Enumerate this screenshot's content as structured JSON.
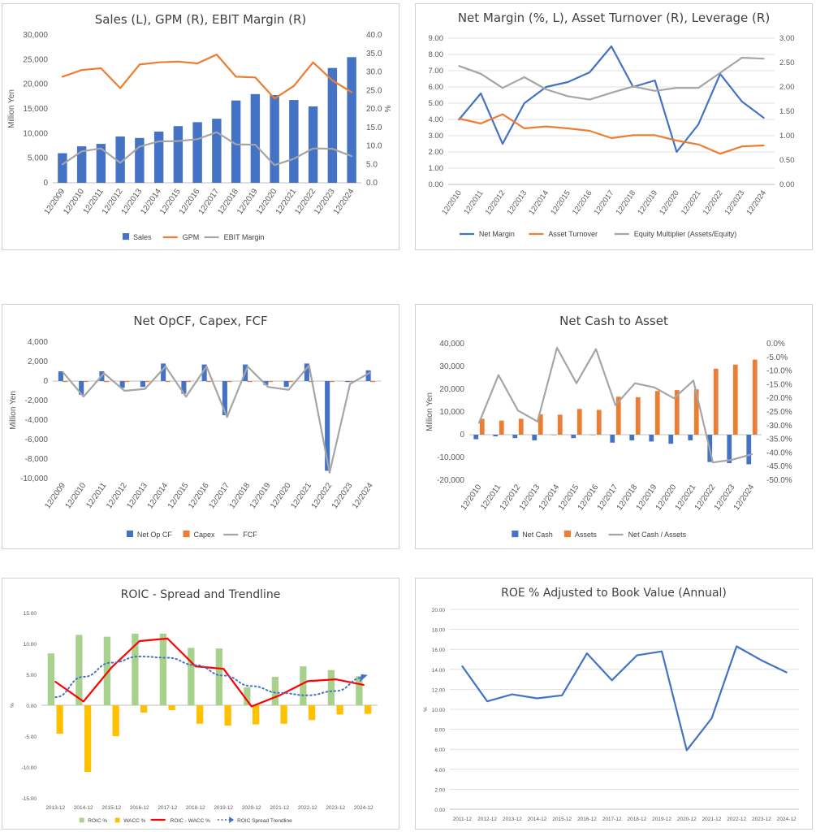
{
  "chart_data": [
    {
      "type": "bar",
      "title": "Sales (L), GPM (R), EBIT Margin (R)",
      "ylabel": "Million Yen",
      "y2label": "%",
      "categories": [
        "12/2009",
        "12/2010",
        "12/2011",
        "12/2012",
        "12/2013",
        "12/2014",
        "12/2015",
        "12/2016",
        "12/2017",
        "12/2018",
        "12/2019",
        "12/2020",
        "12/2021",
        "12/2022",
        "12/2023",
        "12/2024"
      ],
      "ylim": [
        0,
        30000
      ],
      "y2lim": [
        0,
        40
      ],
      "yticks": [
        "0",
        "5,000",
        "10,000",
        "15,000",
        "20,000",
        "25,000",
        "30,000"
      ],
      "y2ticks": [
        "0.0",
        "5.0",
        "10.0",
        "15.0",
        "20.0",
        "25.0",
        "30.0",
        "35.0",
        "40.0"
      ],
      "series": [
        {
          "name": "Sales",
          "kind": "bar",
          "axis": "left",
          "color": "#4472C4",
          "values": [
            6000,
            7400,
            7900,
            9400,
            9100,
            10400,
            11500,
            12300,
            13000,
            16700,
            18000,
            17800,
            16800,
            15500,
            23300,
            25500
          ]
        },
        {
          "name": "GPM",
          "kind": "line",
          "axis": "right",
          "color": "#ED7D31",
          "values": [
            28.7,
            30.5,
            31.0,
            25.6,
            32.0,
            32.6,
            32.8,
            32.3,
            34.7,
            28.7,
            28.5,
            22.8,
            26.2,
            32.6,
            27.7,
            24.5
          ]
        },
        {
          "name": "EBIT Margin",
          "kind": "line",
          "axis": "right",
          "color": "#A5A5A5",
          "values": [
            5.0,
            8.5,
            9.3,
            5.4,
            9.8,
            11.2,
            11.3,
            11.8,
            13.7,
            10.4,
            10.3,
            4.8,
            6.5,
            9.3,
            9.2,
            7.2
          ]
        }
      ],
      "legend": "bottom"
    },
    {
      "type": "line",
      "title": "Net Margin (%, L), Asset Turnover (R), Leverage (R)",
      "categories": [
        "12/2010",
        "12/2011",
        "12/2012",
        "12/2013",
        "12/2014",
        "12/2015",
        "12/2016",
        "12/2017",
        "12/2018",
        "12/2019",
        "12/2020",
        "12/2021",
        "12/2022",
        "12/2023",
        "12/2024"
      ],
      "ylim": [
        0,
        9
      ],
      "y2lim": [
        0,
        3
      ],
      "yticks": [
        "0.00",
        "1.00",
        "2.00",
        "3.00",
        "4.00",
        "5.00",
        "6.00",
        "7.00",
        "8.00",
        "9.00"
      ],
      "y2ticks": [
        "0.00",
        "0.50",
        "1.00",
        "1.50",
        "2.00",
        "2.50",
        "3.00"
      ],
      "series": [
        {
          "name": "Net Margin",
          "axis": "left",
          "color": "#4472C4",
          "values": [
            4.0,
            5.6,
            2.5,
            5.0,
            6.0,
            6.3,
            6.9,
            8.5,
            6.0,
            6.4,
            2.0,
            3.7,
            6.8,
            5.1,
            4.1
          ]
        },
        {
          "name": "Asset Turnover",
          "axis": "right",
          "color": "#ED7D31",
          "values": [
            1.35,
            1.25,
            1.44,
            1.15,
            1.19,
            1.15,
            1.1,
            0.95,
            1.01,
            1.01,
            0.9,
            0.82,
            0.63,
            0.78,
            0.8
          ]
        },
        {
          "name": "Equity Multiplier (Assets/Equity)",
          "axis": "right",
          "color": "#A5A5A5",
          "values": [
            2.43,
            2.27,
            1.98,
            2.2,
            1.95,
            1.81,
            1.74,
            1.88,
            2.01,
            1.92,
            1.98,
            1.98,
            2.29,
            2.6,
            2.58
          ]
        }
      ],
      "legend": "bottom"
    },
    {
      "type": "bar",
      "title": "Net OpCF, Capex, FCF",
      "ylabel": "Million Yen",
      "categories": [
        "12/2009",
        "12/2010",
        "12/2011",
        "12/2012",
        "12/2013",
        "12/2014",
        "12/2015",
        "12/2016",
        "12/2017",
        "12/2018",
        "12/2019",
        "12/2020",
        "12/2021",
        "12/2022",
        "12/2023",
        "12/2024"
      ],
      "ylim": [
        -10000,
        4000
      ],
      "yticks": [
        "-10,000",
        "-8,000",
        "-6,000",
        "-4,000",
        "-2,000",
        "0",
        "2,000",
        "4,000"
      ],
      "negative_tick_color": "#FF0000",
      "series": [
        {
          "name": "Net Op CF",
          "kind": "bar",
          "color": "#4472C4",
          "values": [
            1000,
            -1400,
            1000,
            -700,
            -600,
            1800,
            -1300,
            1700,
            -3500,
            1700,
            -400,
            -600,
            1800,
            -9200,
            -100,
            1100
          ]
        },
        {
          "name": "Capex",
          "kind": "bar",
          "color": "#ED7D31",
          "values": [
            -100,
            -100,
            -100,
            -100,
            -100,
            -100,
            -100,
            -100,
            -100,
            -100,
            -100,
            -100,
            -100,
            -100,
            -100,
            -100
          ]
        },
        {
          "name": "FCF",
          "kind": "line",
          "color": "#A5A5A5",
          "values": [
            900,
            -1600,
            800,
            -1000,
            -800,
            1500,
            -1600,
            1500,
            -3700,
            1500,
            -600,
            -900,
            1600,
            -9400,
            -300,
            900
          ]
        }
      ],
      "legend": "bottom"
    },
    {
      "type": "bar",
      "title": "Net Cash to Asset",
      "ylabel": "Million Yen",
      "categories": [
        "12/2010",
        "12/2011",
        "12/2012",
        "12/2013",
        "12/2014",
        "12/2015",
        "12/2016",
        "12/2017",
        "12/2018",
        "12/2019",
        "12/2020",
        "12/2021",
        "12/2022",
        "12/2023",
        "12/2024"
      ],
      "ylim": [
        -20000,
        40000
      ],
      "y2lim": [
        -50,
        0
      ],
      "yticks": [
        "-20,000",
        "-10,000",
        "0",
        "10,000",
        "20,000",
        "30,000",
        "40,000"
      ],
      "y2ticks": [
        "0.0%",
        "-5.0%",
        "-10.0%",
        "-15.0%",
        "-20.0%",
        "-25.0%",
        "-30.0%",
        "-35.0%",
        "-40.0%",
        "-45.0%",
        "-50.0%"
      ],
      "negative_tick_color": "#FF0000",
      "series": [
        {
          "name": "Net Cash",
          "kind": "bar",
          "axis": "left",
          "color": "#4472C4",
          "values": [
            -2000,
            -700,
            -1500,
            -2500,
            0,
            -1500,
            0,
            -3500,
            -2500,
            -3000,
            -4000,
            -2500,
            -12000,
            -12500,
            -13000
          ]
        },
        {
          "name": "Assets",
          "kind": "bar",
          "axis": "left",
          "color": "#ED7D31",
          "values": [
            7000,
            6200,
            7000,
            9000,
            8800,
            11300,
            10900,
            16700,
            16500,
            19200,
            19600,
            19900,
            29000,
            30800,
            33000
          ]
        },
        {
          "name": "Net Cash / Assets",
          "kind": "line",
          "axis": "right",
          "color": "#A5A5A5",
          "values": [
            -29,
            -11.5,
            -24.5,
            -28.5,
            -1.5,
            -14.5,
            -2,
            -22.5,
            -14.5,
            -16,
            -20,
            -13.5,
            -43.5,
            -42.5,
            -40.5
          ]
        }
      ],
      "legend": "bottom"
    },
    {
      "type": "bar",
      "title": "ROIC - Spread and Trendline",
      "ylabel": "%",
      "categories": [
        "2013-12",
        "2014-12",
        "2015-12",
        "2016-12",
        "2017-12",
        "2018-12",
        "2019-12",
        "2020-12",
        "2021-12",
        "2022-12",
        "2023-12",
        "2024-12"
      ],
      "ylim": [
        -15,
        15
      ],
      "yticks": [
        "-15.00",
        "-10.00",
        "-5.00",
        "0.00",
        "5.00",
        "10.00",
        "15.00"
      ],
      "series": [
        {
          "name": "ROIC %",
          "kind": "bar",
          "color": "#A9D18E",
          "values": [
            8.4,
            11.4,
            11.1,
            11.6,
            11.6,
            9.3,
            9.2,
            2.9,
            4.6,
            6.3,
            5.7,
            4.7
          ]
        },
        {
          "name": "WACC %",
          "kind": "bar",
          "color": "#FFC000",
          "values": [
            -4.6,
            -10.8,
            -5.0,
            -1.2,
            -0.8,
            -3.0,
            -3.3,
            -3.1,
            -3.0,
            -2.4,
            -1.5,
            -1.4
          ]
        },
        {
          "name": "ROIC - WACC %",
          "kind": "line",
          "color": "#FF0000",
          "values": [
            3.8,
            0.6,
            6.1,
            10.4,
            10.8,
            6.3,
            5.9,
            -0.2,
            1.6,
            3.9,
            4.2,
            3.3
          ]
        },
        {
          "name": "ROIC Spread Trendline",
          "kind": "dotted-line",
          "color": "#4472C4",
          "values": [
            1.3,
            4.6,
            6.9,
            7.9,
            7.7,
            6.5,
            4.8,
            3.1,
            2.0,
            1.6,
            2.3,
            4.5
          ]
        }
      ],
      "legend": "bottom"
    },
    {
      "type": "line",
      "title": "ROE % Adjusted to Book Value (Annual)",
      "ylabel": "%",
      "categories": [
        "2011-12",
        "2012-12",
        "2013-12",
        "2014-12",
        "2015-12",
        "2016-12",
        "2017-12",
        "2018-12",
        "2019-12",
        "2020-12",
        "2021-12",
        "2022-12",
        "2023-12",
        "2024-12"
      ],
      "ylim": [
        0,
        20
      ],
      "yticks": [
        "0.00",
        "2.00",
        "4.00",
        "6.00",
        "8.00",
        "10.00",
        "12.00",
        "14.00",
        "16.00",
        "18.00",
        "20.00"
      ],
      "series": [
        {
          "name": "ROE",
          "color": "#4472C4",
          "values": [
            14.3,
            10.8,
            11.5,
            11.1,
            11.4,
            15.6,
            12.9,
            15.4,
            15.8,
            5.9,
            9.1,
            16.3,
            14.9,
            13.7
          ]
        }
      ]
    }
  ]
}
